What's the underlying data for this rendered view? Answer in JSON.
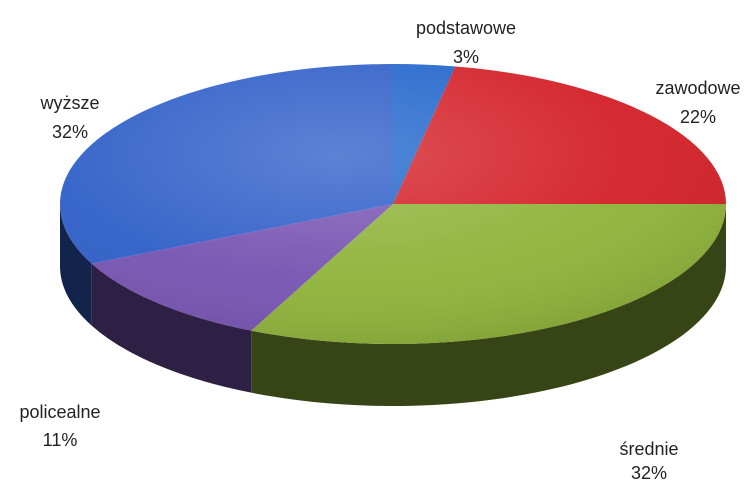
{
  "chart_data": {
    "type": "pie",
    "title": "",
    "style": "3d-tilted",
    "legend": "none",
    "slices": [
      {
        "name": "podstawowe",
        "value": 3,
        "label": "3%",
        "color": "#2266cc"
      },
      {
        "name": "zawodowe",
        "value": 22,
        "label": "22%",
        "color": "#d32128"
      },
      {
        "name": "średnie",
        "value": 32,
        "label": "32%",
        "color": "#8fb33a"
      },
      {
        "name": "policealne",
        "value": 11,
        "label": "11%",
        "color": "#7754b2"
      },
      {
        "name": "wyższe",
        "value": 32,
        "label": "32%",
        "color": "#2f5fc8"
      }
    ]
  }
}
